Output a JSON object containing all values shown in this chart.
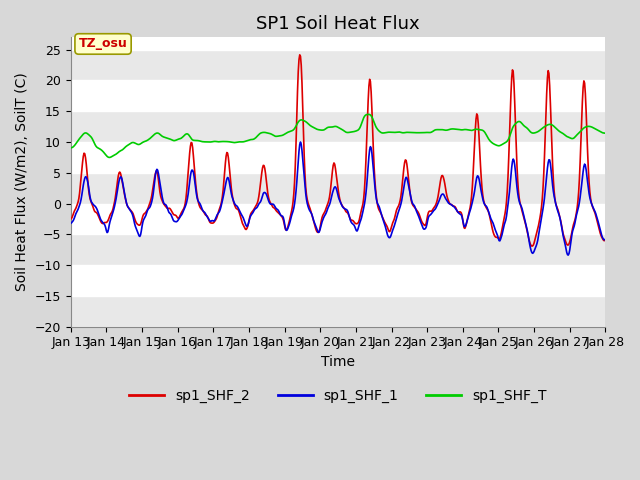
{
  "title": "SP1 Soil Heat Flux",
  "xlabel": "Time",
  "ylabel": "Soil Heat Flux (W/m2), SoilT (C)",
  "ylim": [
    -20,
    27
  ],
  "yticks": [
    -20,
    -15,
    -10,
    -5,
    0,
    5,
    10,
    15,
    20,
    25
  ],
  "xtick_labels": [
    "Jan 13",
    "Jan 14",
    "Jan 15",
    "Jan 16",
    "Jan 17",
    "Jan 18",
    "Jan 19",
    "Jan 20",
    "Jan 21",
    "Jan 22",
    "Jan 23",
    "Jan 24",
    "Jan 25",
    "Jan 26",
    "Jan 27",
    "Jan 28"
  ],
  "legend_entries": [
    "sp1_SHF_2",
    "sp1_SHF_1",
    "sp1_SHF_T"
  ],
  "line_colors": [
    "#dd0000",
    "#0000dd",
    "#00cc00"
  ],
  "annotation_text": "TZ_osu",
  "annotation_color": "#cc0000",
  "annotation_bg": "#ffffcc",
  "annotation_border": "#999900",
  "fig_bg_color": "#d8d8d8",
  "plot_bg_color": "#ffffff",
  "alt_band_color": "#e8e8e8",
  "grid_color": "#ffffff",
  "title_fontsize": 13,
  "label_fontsize": 10,
  "tick_fontsize": 9,
  "legend_fontsize": 10,
  "linewidth": 1.2
}
